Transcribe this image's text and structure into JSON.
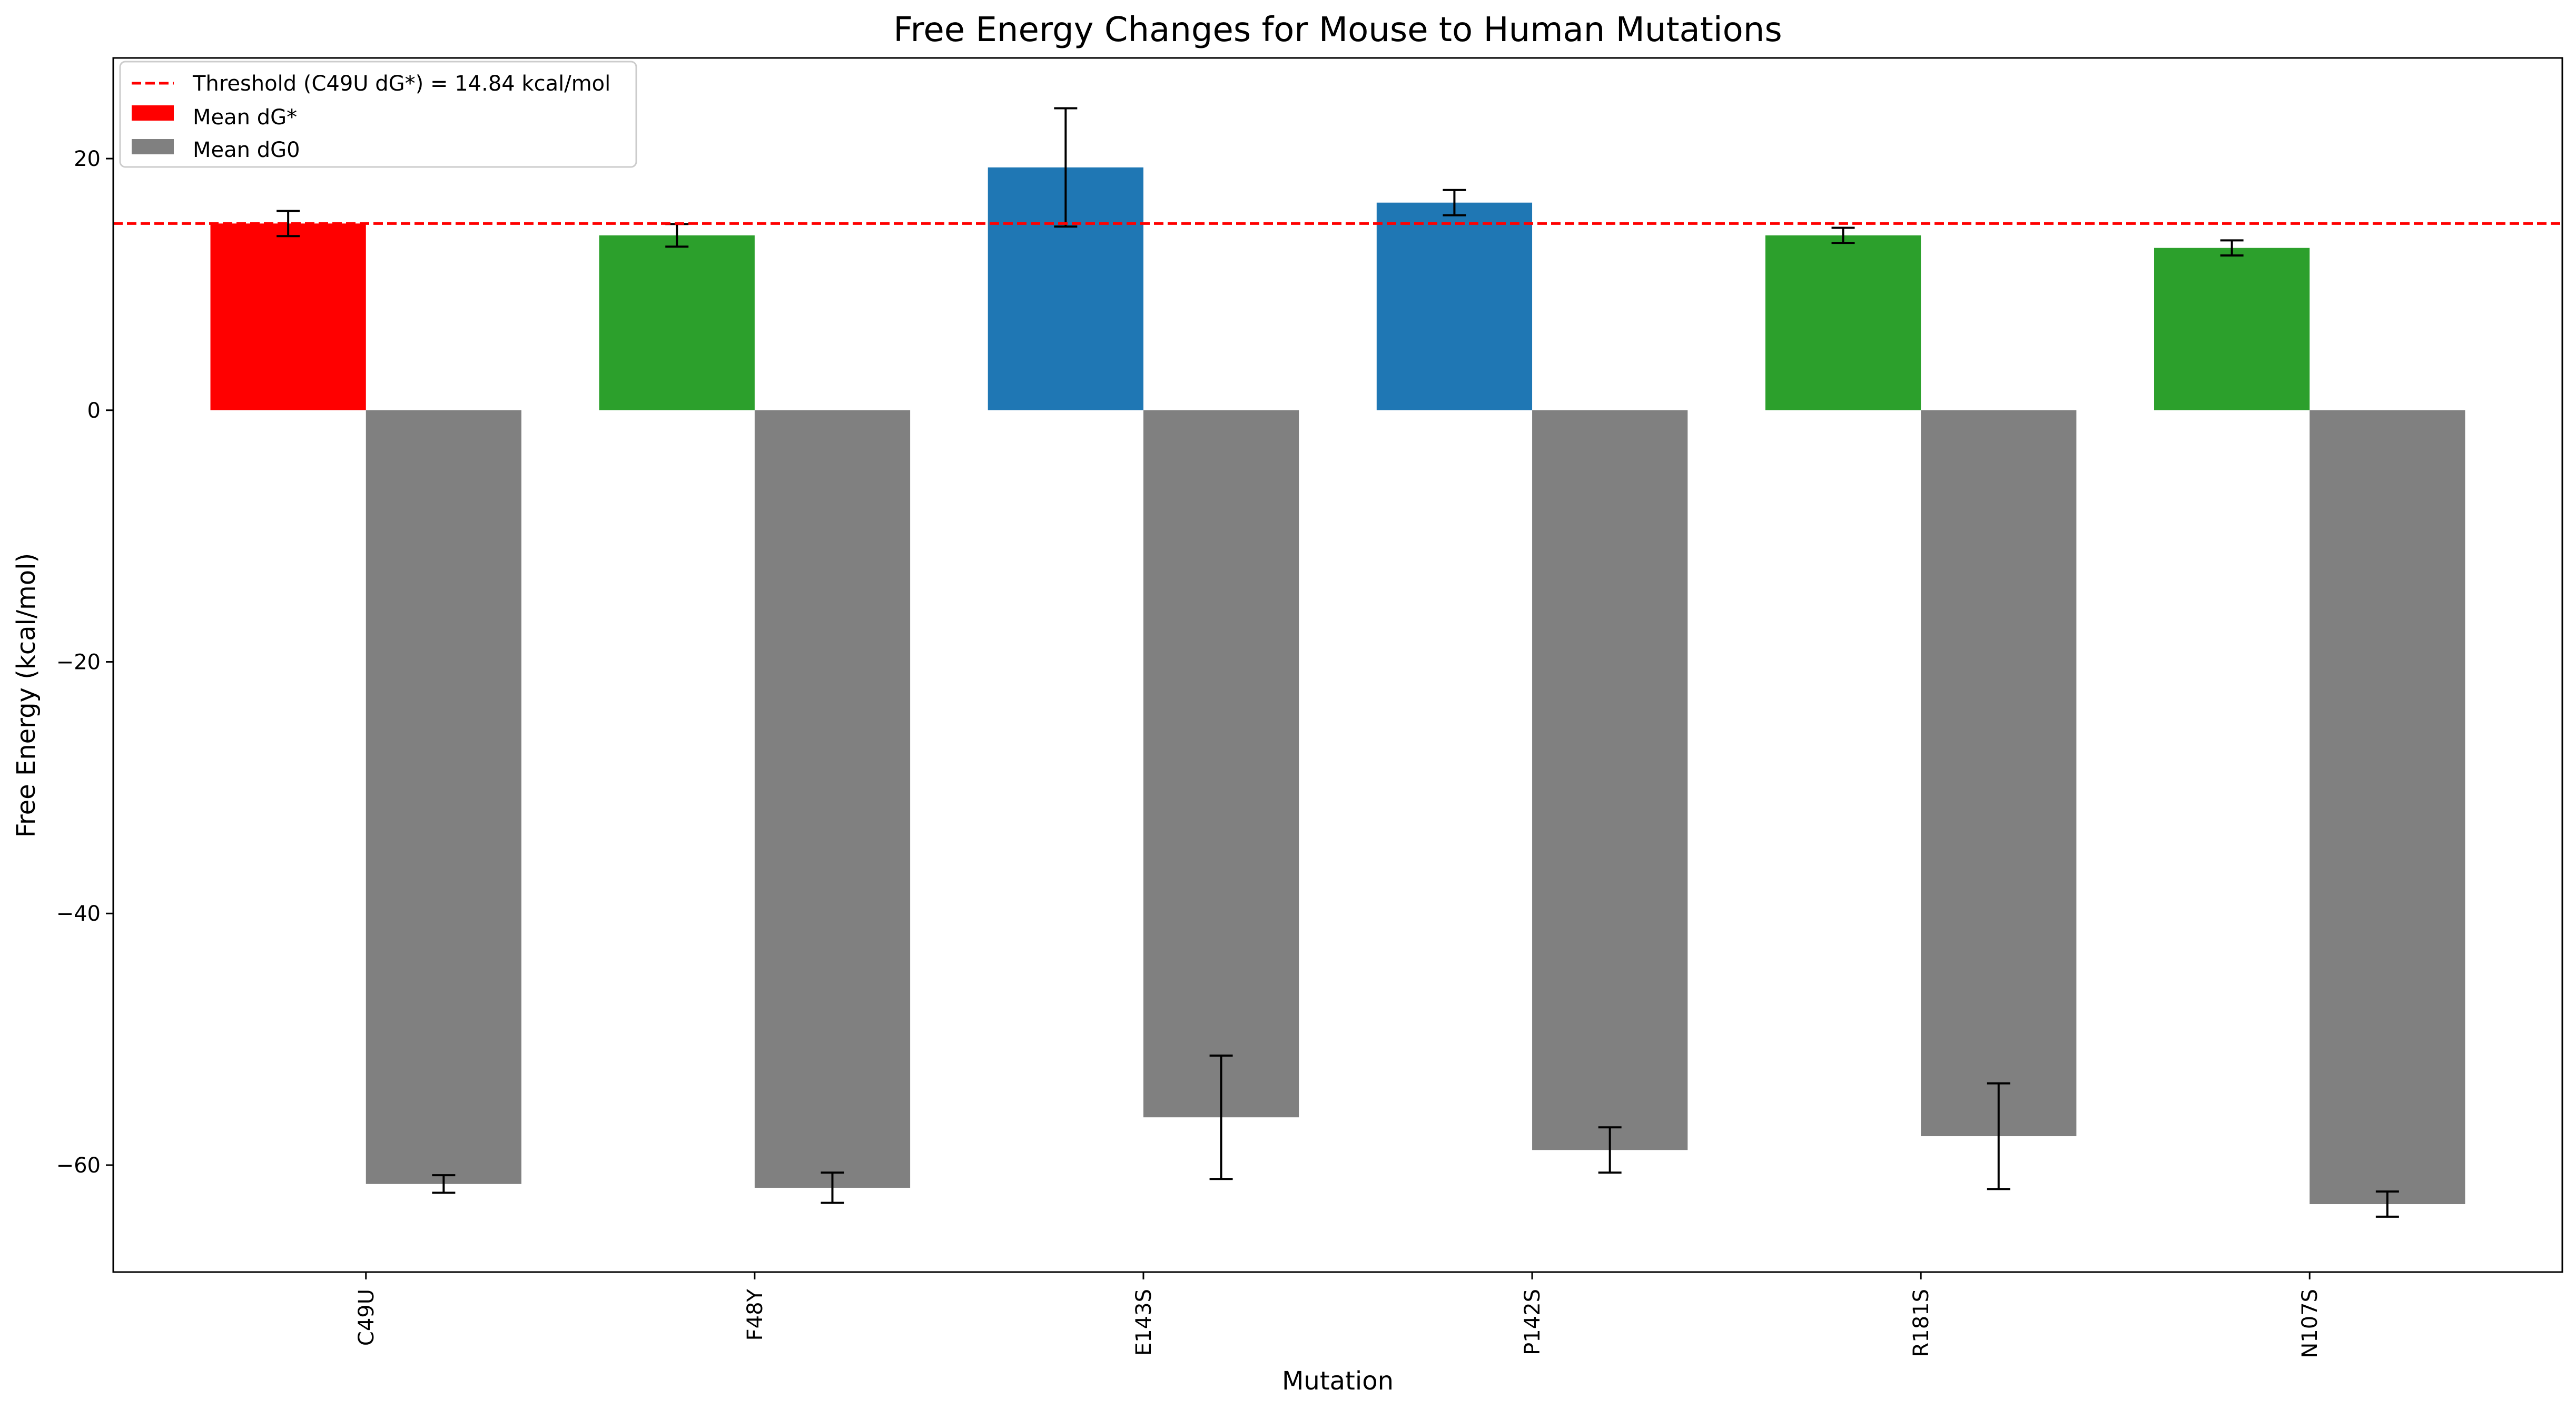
{
  "chart_data": {
    "type": "bar",
    "title": "Free Energy Changes for Mouse to Human Mutations",
    "xlabel": "Mutation",
    "ylabel": "Free Energy (kcal/mol)",
    "ylim": [
      -68.5,
      28
    ],
    "yticks": [
      20,
      0,
      -20,
      -40,
      -60
    ],
    "categories": [
      "C49U",
      "F48Y",
      "E143S",
      "P142S",
      "R181S",
      "N107S"
    ],
    "series": [
      {
        "name": "Mean dG*",
        "values": [
          14.84,
          13.9,
          19.3,
          16.5,
          13.9,
          12.9
        ],
        "errors": [
          1.0,
          0.9,
          4.7,
          1.0,
          0.6,
          0.6
        ],
        "colors": [
          "#ff0000",
          "#2ca02c",
          "#1f77b4",
          "#1f77b4",
          "#2ca02c",
          "#2ca02c"
        ],
        "legend_color": "#ff0000"
      },
      {
        "name": "Mean dG0",
        "values": [
          -61.5,
          -61.8,
          -56.2,
          -58.8,
          -57.7,
          -63.1
        ],
        "errors": [
          0.7,
          1.2,
          4.9,
          1.8,
          4.2,
          1.0
        ],
        "colors": [
          "#808080",
          "#808080",
          "#808080",
          "#808080",
          "#808080",
          "#808080"
        ],
        "legend_color": "#808080"
      }
    ],
    "threshold": {
      "label": "Threshold (C49U dG*) = 14.84 kcal/mol",
      "value": 14.84,
      "color": "#ff0000",
      "style": "dashed"
    },
    "grid": false,
    "legend_position": "top-left"
  }
}
